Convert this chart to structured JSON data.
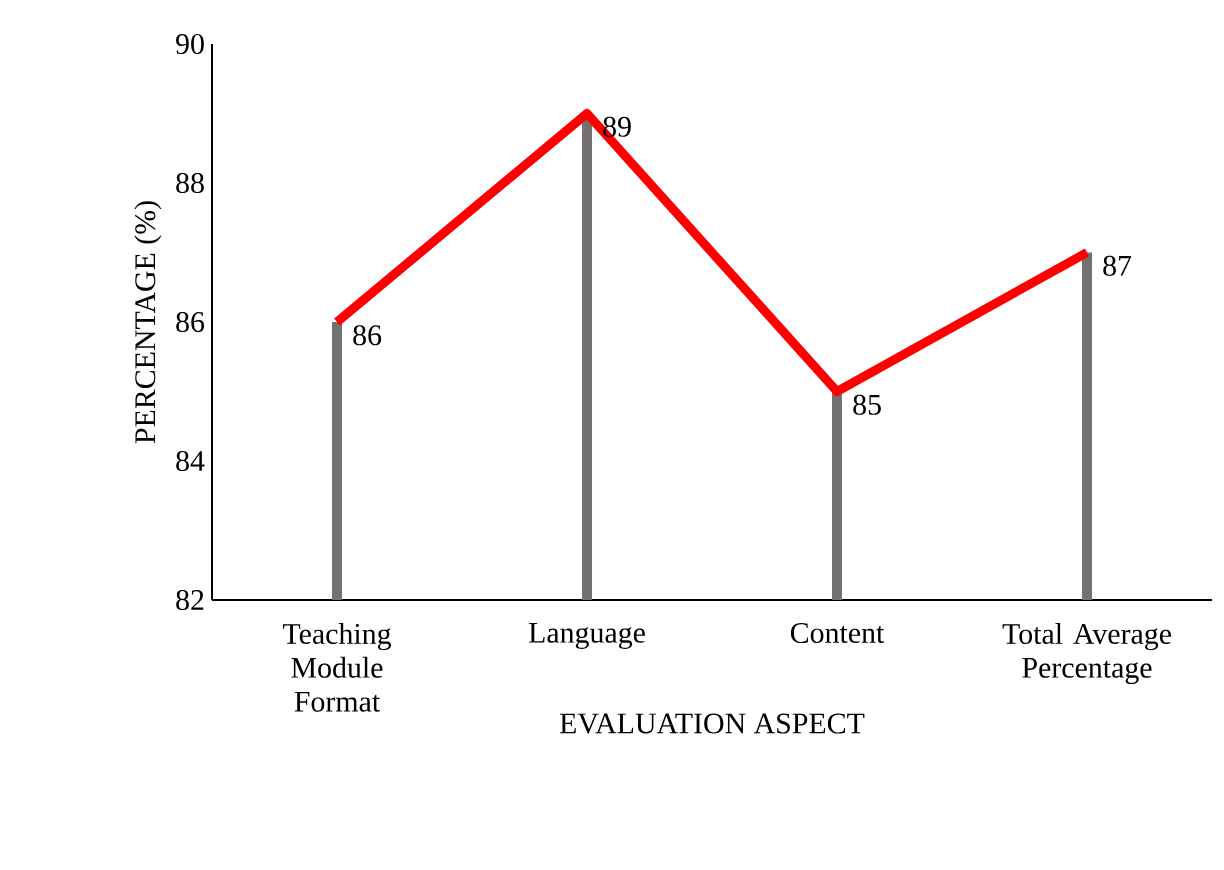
{
  "chart_data": {
    "type": "line",
    "xlabel": "EVALUATION ASPECT",
    "ylabel": "PERCENTAGE (%)",
    "categories": [
      "Teaching Module Format",
      "Language",
      "Content",
      "Total Average Percentage"
    ],
    "series": [
      {
        "type": "bar",
        "color": "#767171",
        "values": [
          86,
          89,
          85,
          87
        ]
      },
      {
        "color": "#ff0000",
        "values": [
          86,
          89,
          85,
          87
        ],
        "value_labels": [
          "86",
          "89",
          "85",
          "87"
        ]
      }
    ],
    "ylim": [
      82,
      90
    ],
    "yticks": [
      82,
      84,
      86,
      88,
      90
    ],
    "grid": false,
    "marker": "none",
    "line_style": "solid"
  }
}
